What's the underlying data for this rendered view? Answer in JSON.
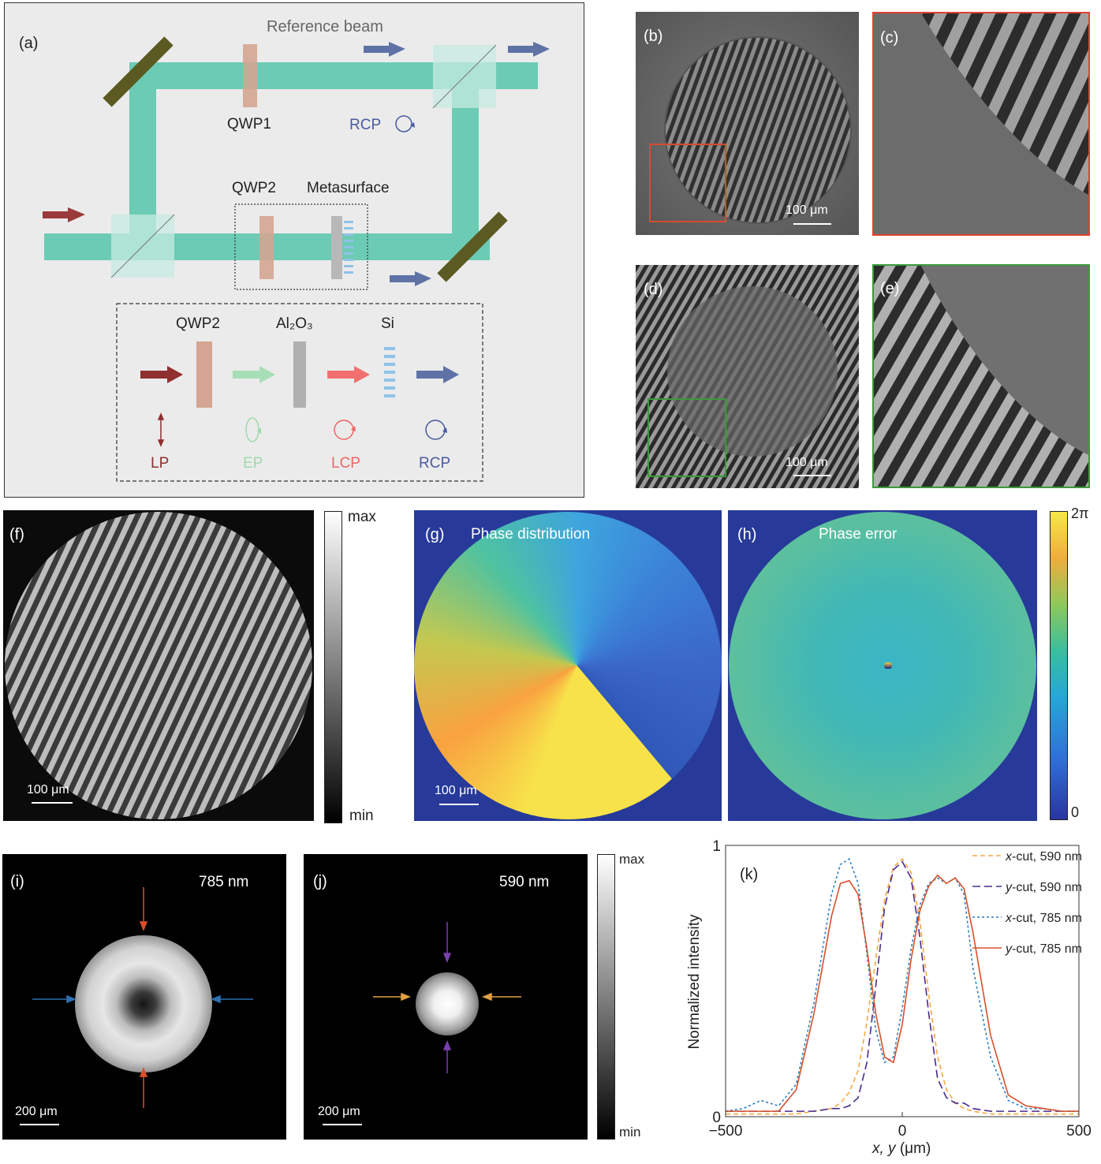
{
  "panel_a": {
    "label": "(a)",
    "reference_beam": "Reference beam",
    "qwp1": "QWP1",
    "rcp_top": "RCP",
    "qwp2": "QWP2",
    "metasurface": "Metasurface",
    "inset": {
      "qwp2": "QWP2",
      "al2o3": "Al₂O₃",
      "si": "Si",
      "lp": "LP",
      "ep": "EP",
      "lcp": "LCP",
      "rcp": "RCP"
    }
  },
  "panel_b": {
    "label": "(b)",
    "scale": "100 μm"
  },
  "panel_c": {
    "label": "(c)"
  },
  "panel_d": {
    "label": "(d)",
    "scale": "100 μm"
  },
  "panel_e": {
    "label": "(e)"
  },
  "panel_f": {
    "label": "(f)",
    "scale": "100 μm",
    "cbar_max": "max",
    "cbar_min": "min"
  },
  "panel_g": {
    "label": "(g)",
    "title": "Phase distribution",
    "scale": "100 μm"
  },
  "panel_h": {
    "label": "(h)",
    "title": "Phase error",
    "cbar_max": "2π",
    "cbar_min": "0"
  },
  "panel_i": {
    "label": "(i)",
    "wavelength": "785 nm",
    "scale": "200 μm"
  },
  "panel_j": {
    "label": "(j)",
    "wavelength": "590 nm",
    "scale": "200 μm",
    "cbar_max": "max",
    "cbar_min": "min"
  },
  "chart_data": {
    "type": "line",
    "label": "(k)",
    "xlabel_var": "x, y",
    "xlabel_unit": "(μm)",
    "ylabel": "Normalized intensity",
    "xlim": [
      -500,
      500
    ],
    "ylim": [
      0,
      1
    ],
    "xticks": [
      "−500",
      "0",
      "500"
    ],
    "yticks": [
      "0",
      "1"
    ],
    "x": [
      -500,
      -450,
      -400,
      -350,
      -300,
      -250,
      -200,
      -175,
      -150,
      -125,
      -100,
      -75,
      -50,
      -25,
      0,
      25,
      50,
      75,
      100,
      125,
      150,
      175,
      200,
      250,
      300,
      350,
      400,
      450,
      500
    ],
    "series": [
      {
        "name": "x-cut, 590 nm",
        "name_var": "x",
        "name_rest": "-cut, 590 nm",
        "color": "#f5a742",
        "dash": "6,4",
        "values": [
          0.01,
          0.01,
          0.01,
          0.01,
          0.01,
          0.02,
          0.03,
          0.05,
          0.09,
          0.17,
          0.35,
          0.58,
          0.8,
          0.92,
          0.95,
          0.9,
          0.72,
          0.45,
          0.22,
          0.1,
          0.05,
          0.03,
          0.02,
          0.01,
          0.01,
          0.01,
          0.01,
          0.01,
          0.01
        ]
      },
      {
        "name": "y-cut, 590 nm",
        "name_var": "y",
        "name_rest": "-cut, 590 nm",
        "color": "#4a2a8c",
        "dash": "10,5",
        "values": [
          0.02,
          0.02,
          0.02,
          0.02,
          0.02,
          0.02,
          0.03,
          0.03,
          0.04,
          0.07,
          0.2,
          0.48,
          0.77,
          0.91,
          0.94,
          0.88,
          0.66,
          0.38,
          0.14,
          0.07,
          0.05,
          0.05,
          0.03,
          0.02,
          0.02,
          0.02,
          0.02,
          0.02,
          0.02
        ]
      },
      {
        "name": "x-cut, 785 nm",
        "name_var": "x",
        "name_rest": "-cut, 785 nm",
        "color": "#2e7fc2",
        "dash": "3,3",
        "values": [
          0.02,
          0.03,
          0.06,
          0.04,
          0.12,
          0.42,
          0.82,
          0.93,
          0.95,
          0.86,
          0.6,
          0.32,
          0.2,
          0.22,
          0.4,
          0.62,
          0.78,
          0.86,
          0.88,
          0.86,
          0.88,
          0.82,
          0.55,
          0.22,
          0.06,
          0.03,
          0.03,
          0.02,
          0.02
        ]
      },
      {
        "name": "y-cut, 785 nm",
        "name_var": "y",
        "name_rest": "-cut, 785 nm",
        "color": "#d8502a",
        "dash": "",
        "values": [
          0.02,
          0.02,
          0.02,
          0.02,
          0.1,
          0.38,
          0.74,
          0.86,
          0.87,
          0.82,
          0.62,
          0.38,
          0.22,
          0.2,
          0.34,
          0.58,
          0.76,
          0.85,
          0.89,
          0.86,
          0.88,
          0.84,
          0.68,
          0.3,
          0.08,
          0.04,
          0.03,
          0.02,
          0.02
        ]
      }
    ]
  }
}
